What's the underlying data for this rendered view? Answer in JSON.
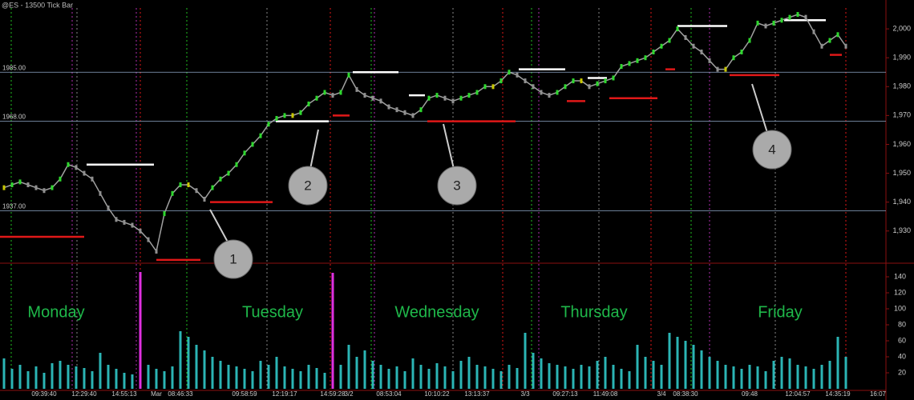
{
  "chart_data": {
    "type": "line",
    "title": "@ES - 13500 Tick Bar",
    "categories": [
      null,
      null,
      null,
      null,
      null,
      "09:39:40",
      null,
      null,
      null,
      null,
      "12:29:40",
      null,
      null,
      null,
      null,
      "14:55:13",
      null,
      null,
      null,
      "Mar",
      null,
      null,
      "08:46:33",
      null,
      null,
      null,
      null,
      null,
      null,
      null,
      "09:58:59",
      null,
      null,
      null,
      null,
      "12:19:17",
      null,
      null,
      null,
      null,
      null,
      "14:59:28",
      null,
      "3/2",
      null,
      null,
      null,
      null,
      "08:53:04",
      null,
      null,
      null,
      null,
      null,
      "10:10:22",
      null,
      null,
      null,
      null,
      "13:13:37",
      null,
      null,
      null,
      null,
      null,
      "3/3",
      null,
      null,
      null,
      null,
      "09:27:13",
      null,
      null,
      null,
      null,
      "11:49:08",
      null,
      null,
      null,
      null,
      null,
      null,
      "3/4",
      null,
      null,
      "08:38:30",
      null,
      null,
      null,
      null,
      null,
      null,
      null,
      "09:48",
      null,
      null,
      null,
      null,
      null,
      "12:04:57",
      null,
      null,
      null,
      null,
      "14:35:19",
      null,
      null,
      null,
      null,
      "16:07"
    ],
    "series": [
      {
        "color": "#a0a0a0",
        "values": [
          1945,
          1946,
          1947,
          1946,
          1945,
          1944,
          1945,
          1948,
          1953,
          1952,
          1950,
          1948,
          1943,
          1938,
          1934,
          1933,
          1932,
          1930,
          1927,
          1923,
          1936,
          1943,
          1946,
          1946,
          1944,
          1941,
          1945,
          1948,
          1950,
          1953,
          1957,
          1960,
          1963,
          1967,
          1969,
          1970,
          1970,
          1971,
          1974,
          1976,
          1978,
          1977,
          1978,
          1984,
          1979,
          1977,
          1976,
          1975,
          1973,
          1972,
          1971,
          1970,
          1972,
          1976,
          1977,
          1976,
          1975,
          1976,
          1977,
          1978,
          1980,
          1980,
          1982,
          1985,
          1984,
          1982,
          1980,
          1978,
          1977,
          1978,
          1980,
          1982,
          1982,
          1980,
          1981,
          1982,
          1983,
          1987,
          1988,
          1989,
          1990,
          1992,
          1994,
          1996,
          2000,
          1997,
          1994,
          1992,
          1989,
          1986,
          1986,
          1990,
          1992,
          1996,
          2002,
          2001,
          2002,
          2003,
          2004,
          2005,
          2004,
          1999,
          1994,
          1996,
          1998,
          1994,
          null,
          null,
          null,
          null
        ]
      }
    ],
    "ylim": [
      1919.4,
      2010
    ],
    "yticks": [
      {
        "value": 1930,
        "label": "1,930"
      },
      {
        "value": 1940,
        "label": "1,940"
      },
      {
        "value": 1950,
        "label": "1,950"
      },
      {
        "value": 1960,
        "label": "1,960"
      },
      {
        "value": 1970,
        "label": "1,970"
      },
      {
        "value": 1980,
        "label": "1,980"
      },
      {
        "value": 1990,
        "label": "1,990"
      },
      {
        "value": 2000,
        "label": "2,000"
      }
    ],
    "reference_lines": [
      {
        "value": 1985,
        "label": "1985.00"
      },
      {
        "value": 1968,
        "label": "1968.00"
      },
      {
        "value": 1937,
        "label": "1937.00"
      }
    ],
    "levels": [
      {
        "value": 1928,
        "color": "#e01818"
      },
      {
        "value": 1953,
        "color": "#ffffff"
      },
      {
        "value": 1920,
        "color": "#e01818"
      },
      {
        "value": 1940,
        "color": "#e01818"
      },
      {
        "value": 1968,
        "color": "#ffffff"
      },
      {
        "value": 1970,
        "color": "#e01818"
      },
      {
        "value": 1985,
        "color": "#ffffff"
      },
      {
        "value": 1977,
        "color": "#ffffff"
      },
      {
        "value": 1968,
        "color": "#e01818"
      },
      {
        "value": 1986,
        "color": "#ffffff"
      },
      {
        "value": 1975,
        "color": "#e01818"
      },
      {
        "value": 1983,
        "color": "#ffffff"
      },
      {
        "value": 1976,
        "color": "#e01818"
      },
      {
        "value": 1986,
        "color": "#e01818"
      },
      {
        "value": 2001,
        "color": "#ffffff"
      },
      {
        "value": 1984,
        "color": "#e01818"
      },
      {
        "value": 2003,
        "color": "#ffffff"
      },
      {
        "value": 1991,
        "color": "#e01818"
      }
    ],
    "volume": {
      "color": "#2bb5b5",
      "ylim": [
        0,
        154
      ],
      "yticks": [
        20,
        40,
        60,
        80,
        100,
        120,
        140
      ],
      "values": [
        38,
        25,
        30,
        22,
        28,
        20,
        32,
        35,
        30,
        28,
        26,
        22,
        45,
        30,
        25,
        20,
        18,
        146,
        30,
        25,
        22,
        28,
        72,
        65,
        55,
        48,
        40,
        35,
        30,
        28,
        25,
        22,
        35,
        30,
        40,
        28,
        25,
        22,
        30,
        26,
        20,
        145,
        30,
        55,
        40,
        48,
        35,
        30,
        25,
        28,
        22,
        38,
        30,
        25,
        32,
        28,
        22,
        35,
        40,
        30,
        28,
        25,
        22,
        30,
        26,
        70,
        45,
        38,
        32,
        30,
        28,
        25,
        30,
        28,
        35,
        40,
        30,
        25,
        22,
        55,
        40,
        35,
        30,
        70,
        65,
        60,
        55,
        48,
        40,
        35,
        30,
        28,
        25,
        30,
        28,
        22,
        35,
        40,
        38,
        30,
        28,
        25,
        30,
        35,
        65,
        40,
        null,
        null,
        null,
        null
      ]
    },
    "day_labels": [
      "Monday",
      "Tuesday",
      "Wednesday",
      "Thursday",
      "Friday"
    ],
    "callouts": [
      "1",
      "2",
      "3",
      "4"
    ]
  }
}
